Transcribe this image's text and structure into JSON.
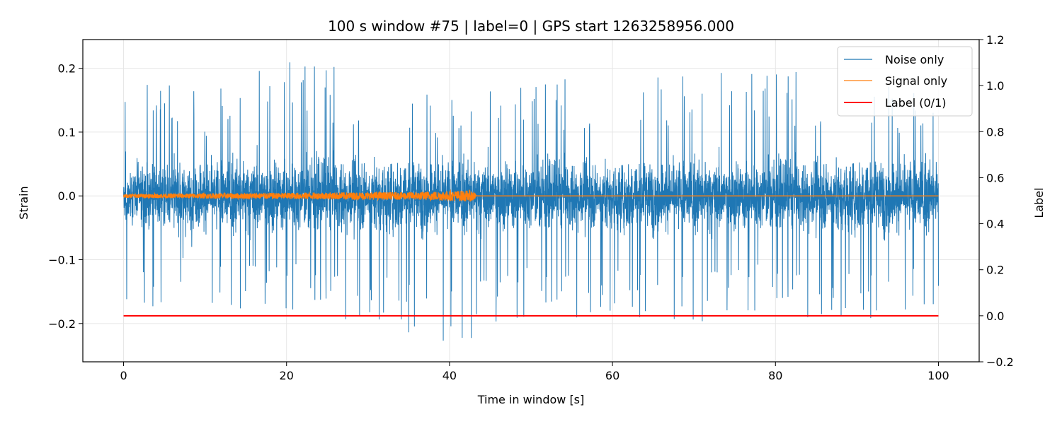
{
  "chart_data": {
    "type": "line",
    "title": "100 s window #75 | label=0 | GPS start 1263258956.000",
    "xlabel": "Time in window [s]",
    "ylabel": "Strain",
    "y2label": "Label",
    "xlim": [
      -5,
      105
    ],
    "ylim": [
      -0.26,
      0.245
    ],
    "y2lim": [
      -0.2,
      1.2
    ],
    "xticks": [
      0,
      20,
      40,
      60,
      80,
      100
    ],
    "xtick_labels": [
      "0",
      "20",
      "40",
      "60",
      "80",
      "100"
    ],
    "yticks": [
      -0.2,
      -0.1,
      0.0,
      0.1,
      0.2
    ],
    "ytick_labels": [
      "−0.2",
      "−0.1",
      "0.0",
      "0.1",
      "0.2"
    ],
    "y2ticks": [
      -0.2,
      0.0,
      0.2,
      0.4,
      0.6,
      0.8,
      1.0,
      1.2
    ],
    "y2tick_labels": [
      "−0.2",
      "0.0",
      "0.2",
      "0.4",
      "0.6",
      "0.8",
      "1.0",
      "1.2"
    ],
    "grid": true,
    "legend_position": "top-right",
    "series": [
      {
        "name": "Noise only",
        "axis": "left",
        "color": "#1f77b4",
        "x_range": [
          0,
          100
        ],
        "envelope": {
          "x": [
            0,
            10,
            20,
            30,
            40,
            50,
            60,
            70,
            80,
            90,
            100
          ],
          "dense_amplitude": [
            0.08,
            0.085,
            0.09,
            0.09,
            0.085,
            0.085,
            0.085,
            0.085,
            0.085,
            0.09,
            0.085
          ],
          "spike_max": [
            0.18,
            0.17,
            0.22,
            0.2,
            0.16,
            0.18,
            0.2,
            0.2,
            0.2,
            0.2,
            0.16
          ],
          "spike_min": [
            -0.18,
            -0.17,
            -0.19,
            -0.2,
            -0.235,
            -0.2,
            -0.19,
            -0.2,
            -0.19,
            -0.2,
            -0.17
          ]
        },
        "min": -0.235,
        "max": 0.225
      },
      {
        "name": "Signal only",
        "axis": "left",
        "color": "#ff7f0e",
        "x": [
          0,
          10,
          20,
          30,
          35,
          40,
          43,
          43.3,
          100
        ],
        "amplitude": [
          0.003,
          0.004,
          0.005,
          0.006,
          0.006,
          0.008,
          0.009,
          0,
          0
        ]
      },
      {
        "name": "Label (0/1)",
        "axis": "right",
        "color": "#ff0000",
        "x": [
          0,
          100
        ],
        "values": [
          0,
          0
        ]
      }
    ]
  }
}
